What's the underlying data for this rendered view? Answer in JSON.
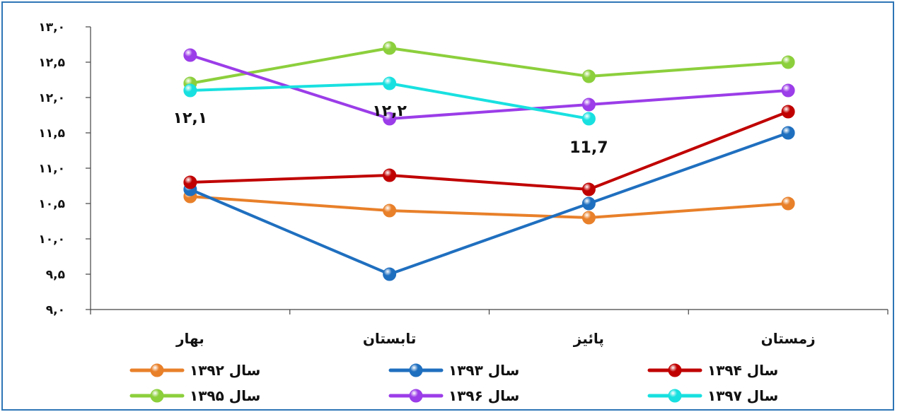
{
  "chart_data": {
    "type": "line",
    "title": "",
    "xlabel": "",
    "ylabel": "",
    "categories": [
      "بهار",
      "تابستان",
      "پائیز",
      "زمستان"
    ],
    "ylim": [
      9.0,
      13.0
    ],
    "yticks": [
      9.0,
      9.5,
      10.0,
      10.5,
      11.0,
      11.5,
      12.0,
      12.5,
      13.0
    ],
    "ytick_labels": [
      "۹,۰",
      "۹,۵",
      "۱۰,۰",
      "۱۰,۵",
      "۱۱,۰",
      "۱۱,۵",
      "۱۲,۰",
      "۱۲,۵",
      "۱۳,۰"
    ],
    "grid": false,
    "legend_position": "bottom",
    "series": [
      {
        "name": "سال ۱۳۹۲",
        "color": "#e8802a",
        "values": [
          10.6,
          10.4,
          10.3,
          10.5
        ]
      },
      {
        "name": "سال ۱۳۹۳",
        "color": "#1f6fbf",
        "values": [
          10.7,
          9.5,
          10.5,
          11.5
        ]
      },
      {
        "name": "سال ۱۳۹۴",
        "color": "#c00000",
        "values": [
          10.8,
          10.9,
          10.7,
          11.8
        ]
      },
      {
        "name": "سال ۱۳۹۵",
        "color": "#8ccf3c",
        "values": [
          12.2,
          12.7,
          12.3,
          12.5
        ]
      },
      {
        "name": "سال ۱۳۹۶",
        "color": "#9b3de8",
        "values": [
          12.6,
          11.7,
          11.9,
          12.1
        ]
      },
      {
        "name": "سال ۱۳۹۷",
        "color": "#19e0e0",
        "values": [
          12.1,
          12.2,
          11.7,
          null
        ]
      }
    ],
    "annotations": [
      {
        "text": "۱۲,۱",
        "category": "بهار",
        "series": "سال ۱۳۹۷"
      },
      {
        "text": "۱۲,۲",
        "category": "تابستان",
        "series": "سال ۱۳۹۷"
      },
      {
        "text": "11,7",
        "category": "پائیز",
        "series": "سال ۱۳۹۷"
      }
    ]
  }
}
